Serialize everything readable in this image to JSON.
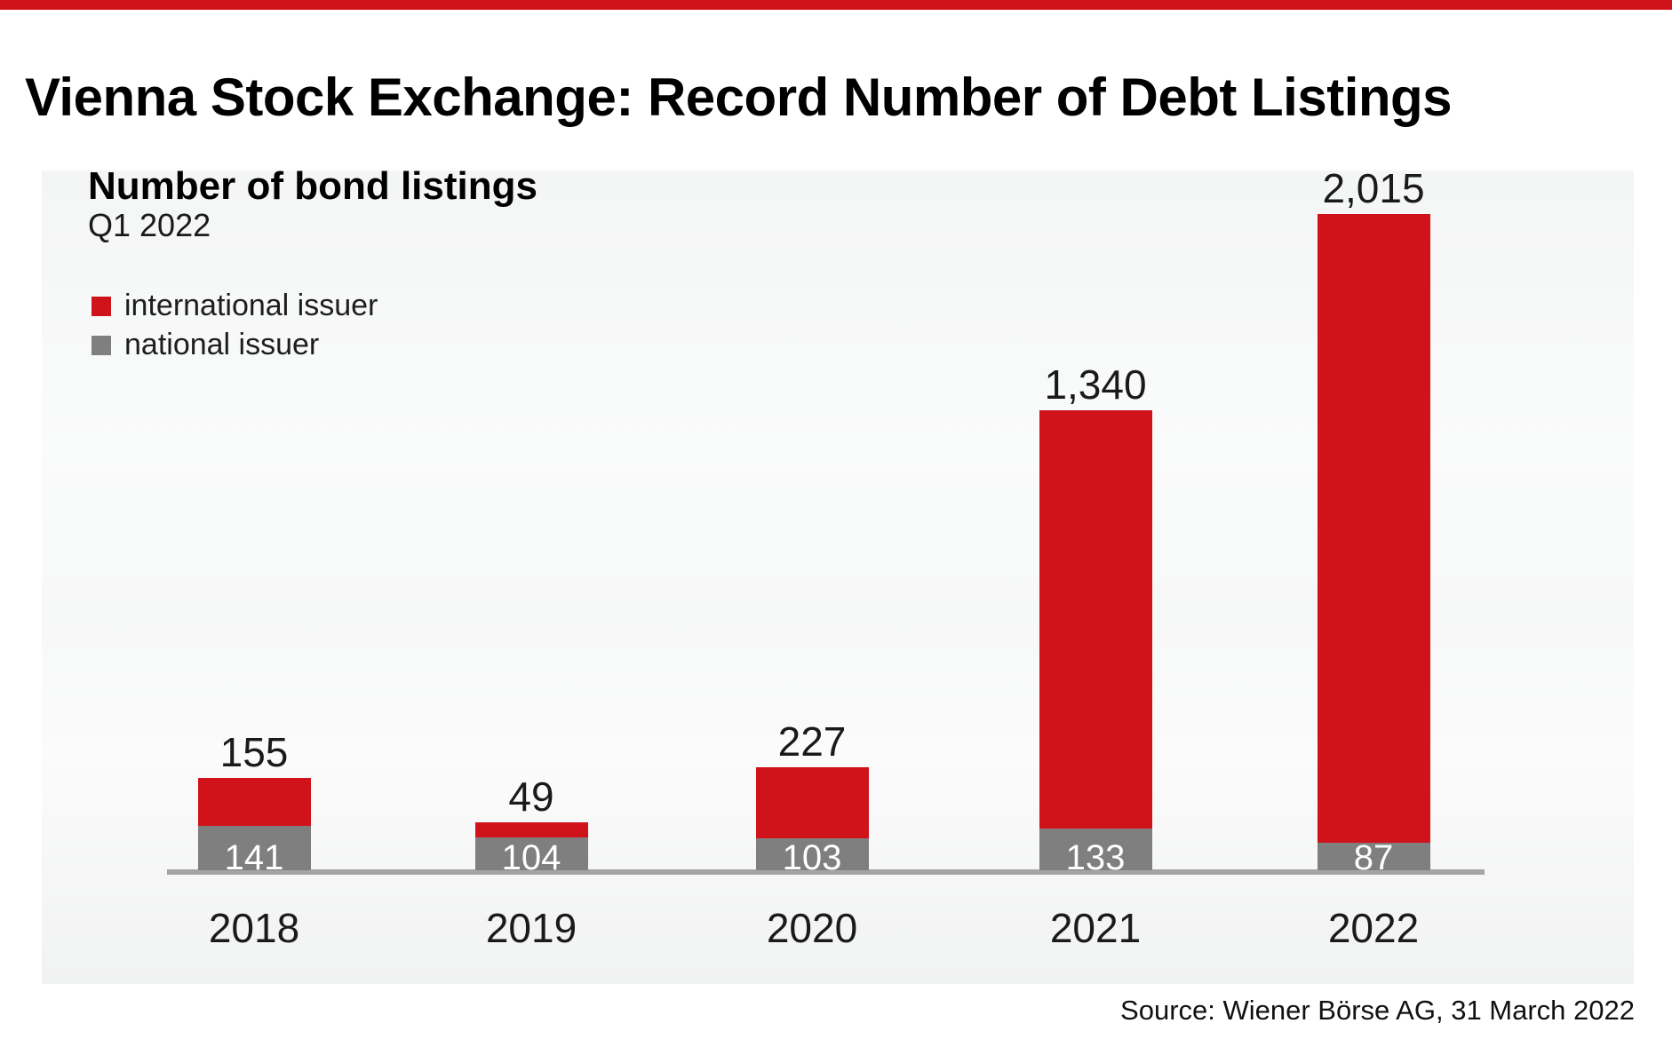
{
  "page": {
    "title": "Vienna Stock Exchange: Record Number of Debt Listings",
    "source": "Source: Wiener Börse AG, 31 March 2022"
  },
  "chart": {
    "heading": "Number of bond listings",
    "subheading": "Q1 2022",
    "legend": [
      {
        "label": "international issuer",
        "color": "#d0121a"
      },
      {
        "label": "national issuer",
        "color": "#7f7f7f"
      }
    ]
  },
  "chart_data": {
    "type": "bar",
    "stacked": true,
    "title": "Number of bond listings",
    "subtitle": "Q1 2022",
    "categories": [
      "2018",
      "2019",
      "2020",
      "2021",
      "2022"
    ],
    "series": [
      {
        "name": "international issuer",
        "color": "#d0121a",
        "values": [
          155,
          49,
          227,
          1340,
          2015
        ]
      },
      {
        "name": "national issuer",
        "color": "#7f7f7f",
        "values": [
          141,
          104,
          103,
          133,
          87
        ]
      }
    ],
    "totals": [
      296,
      153,
      330,
      1473,
      2102
    ],
    "ylim": [
      0,
      2102
    ],
    "grid": false,
    "legend_position": "top-left",
    "value_label_rule": "international value above bar, national value in white inside gray segment",
    "xlabel": "",
    "ylabel": ""
  },
  "colors": {
    "accent_red": "#d0121a",
    "bar_gray": "#7f7f7f",
    "axis_gray": "#a4a4a4",
    "panel_bg": "#f4f5f5"
  }
}
